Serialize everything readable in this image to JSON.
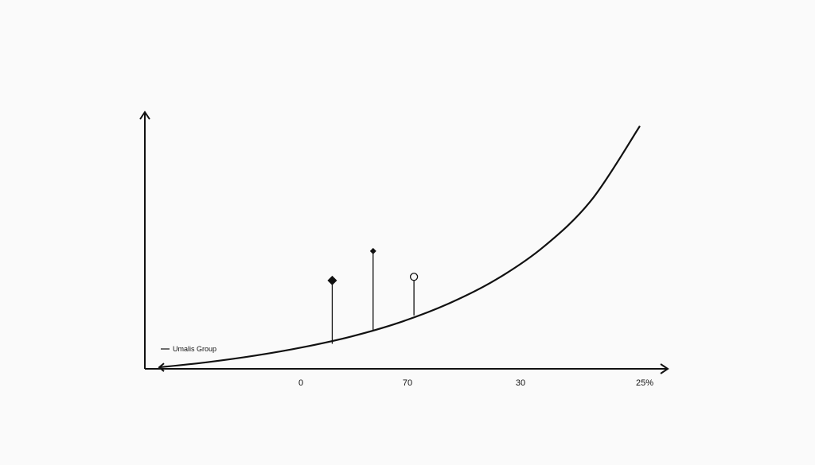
{
  "chart_data": {
    "type": "line",
    "title": "",
    "xlabel": "",
    "ylabel": "",
    "grid": false,
    "legend": {
      "placement": "bottom-left",
      "entries": [
        "Umalis Group"
      ]
    },
    "x_tick_labels": [
      "0",
      "70",
      "30",
      "25%"
    ],
    "series": [
      {
        "name": "Umalis Group",
        "x": [
          0,
          10,
          20,
          30,
          40,
          50,
          60,
          70,
          80,
          90,
          100
        ],
        "y": [
          0.4,
          1.8,
          3.6,
          5.9,
          8.8,
          12.6,
          17.6,
          24.2,
          33.2,
          46.0,
          66.0
        ]
      }
    ],
    "markers": [
      {
        "shape": "diamond",
        "fill": "filled",
        "x": 36,
        "y_anchor": 6.8,
        "y_top": 24.0
      },
      {
        "shape": "dot",
        "fill": "filled",
        "x": 44.5,
        "y_anchor": 10.6,
        "y_top": 32.0
      },
      {
        "shape": "circle",
        "fill": "open",
        "x": 53,
        "y_anchor": 14.5,
        "y_top": 25.0
      }
    ],
    "xlim": [
      0,
      100
    ],
    "ylim": [
      0,
      70
    ],
    "colors": {
      "line": "#111111",
      "axis": "#111111",
      "background": "#fafafa"
    }
  }
}
